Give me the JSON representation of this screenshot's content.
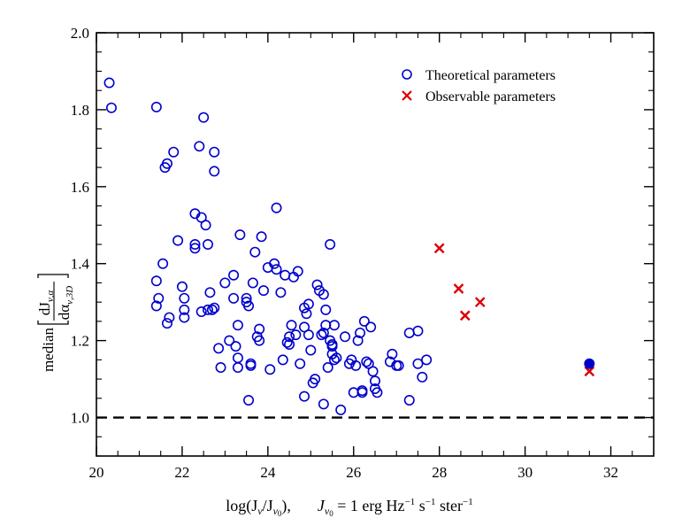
{
  "chart_data": {
    "type": "scatter",
    "title": "",
    "xlabel": "log(Jν / Jν₀),     Jν₀ = 1 erg Hz⁻¹ s⁻¹ ster⁻¹",
    "xlabel_parts": {
      "left": "log(J",
      "left_sub": "ν",
      "mid": "/J",
      "mid_sub": "ν",
      "mid_sub2": "0",
      "close": "),",
      "right": "J",
      "right_sub": "ν",
      "right_sub2": "0",
      "eq": " = 1 erg Hz",
      "exp1": "−1",
      "s": " s",
      "exp2": "−1",
      "ster": " ster",
      "exp3": "−1"
    },
    "ylabel": "median[ dJν,α / dαν,3D ]",
    "ylabel_parts": {
      "prefix": "median",
      "num": "dJ",
      "num_sub": "ν,α",
      "den": "dα",
      "den_sub": "ν,3D"
    },
    "xlim": [
      20,
      33
    ],
    "ylim": [
      0.9,
      2.0
    ],
    "xticks": [
      20,
      22,
      24,
      26,
      28,
      30,
      32
    ],
    "yticks": [
      1.0,
      1.2,
      1.4,
      1.6,
      1.8,
      2.0
    ],
    "xtick_labels": [
      "20",
      "22",
      "24",
      "26",
      "28",
      "30",
      "32"
    ],
    "ytick_labels": [
      "1.0",
      "1.2",
      "1.4",
      "1.6",
      "1.8",
      "2.0"
    ],
    "reference_line": {
      "y": 1.0,
      "style": "dashed",
      "color": "#000000"
    },
    "legend": {
      "placement": "top-right",
      "entries": [
        {
          "label": "Theoretical parameters",
          "marker": "circle",
          "color": "#0000cc"
        },
        {
          "label": "Observable parameters",
          "marker": "x",
          "color": "#dd0000"
        }
      ]
    },
    "series": [
      {
        "name": "Theoretical parameters",
        "marker": "circle",
        "color": "#0000cc",
        "points": [
          [
            20.3,
            1.87
          ],
          [
            20.35,
            1.805
          ],
          [
            21.4,
            1.807
          ],
          [
            21.4,
            1.355
          ],
          [
            21.4,
            1.29
          ],
          [
            21.45,
            1.31
          ],
          [
            21.55,
            1.4
          ],
          [
            21.6,
            1.65
          ],
          [
            21.65,
            1.66
          ],
          [
            21.8,
            1.69
          ],
          [
            21.65,
            1.245
          ],
          [
            21.7,
            1.26
          ],
          [
            21.9,
            1.46
          ],
          [
            22.0,
            1.34
          ],
          [
            22.05,
            1.31
          ],
          [
            22.05,
            1.28
          ],
          [
            22.05,
            1.26
          ],
          [
            22.3,
            1.53
          ],
          [
            22.3,
            1.45
          ],
          [
            22.3,
            1.44
          ],
          [
            22.4,
            1.705
          ],
          [
            22.45,
            1.52
          ],
          [
            22.45,
            1.275
          ],
          [
            22.5,
            1.78
          ],
          [
            22.55,
            1.5
          ],
          [
            22.6,
            1.45
          ],
          [
            22.65,
            1.325
          ],
          [
            22.6,
            1.28
          ],
          [
            22.7,
            1.28
          ],
          [
            22.75,
            1.285
          ],
          [
            22.75,
            1.69
          ],
          [
            22.75,
            1.64
          ],
          [
            22.85,
            1.18
          ],
          [
            22.9,
            1.13
          ],
          [
            23.0,
            1.35
          ],
          [
            23.1,
            1.2
          ],
          [
            23.2,
            1.37
          ],
          [
            23.2,
            1.31
          ],
          [
            23.25,
            1.185
          ],
          [
            23.3,
            1.24
          ],
          [
            23.3,
            1.155
          ],
          [
            23.3,
            1.13
          ],
          [
            23.35,
            1.475
          ],
          [
            23.5,
            1.31
          ],
          [
            23.5,
            1.3
          ],
          [
            23.55,
            1.29
          ],
          [
            23.55,
            1.045
          ],
          [
            23.6,
            1.14
          ],
          [
            23.6,
            1.135
          ],
          [
            23.65,
            1.35
          ],
          [
            23.7,
            1.43
          ],
          [
            23.75,
            1.21
          ],
          [
            23.8,
            1.23
          ],
          [
            23.8,
            1.2
          ],
          [
            23.85,
            1.47
          ],
          [
            23.9,
            1.33
          ],
          [
            24.0,
            1.39
          ],
          [
            24.05,
            1.125
          ],
          [
            24.15,
            1.4
          ],
          [
            24.2,
            1.385
          ],
          [
            24.2,
            1.545
          ],
          [
            24.3,
            1.325
          ],
          [
            24.35,
            1.15
          ],
          [
            24.4,
            1.37
          ],
          [
            24.45,
            1.195
          ],
          [
            24.5,
            1.21
          ],
          [
            24.5,
            1.19
          ],
          [
            24.55,
            1.24
          ],
          [
            24.6,
            1.365
          ],
          [
            24.65,
            1.215
          ],
          [
            24.7,
            1.38
          ],
          [
            24.75,
            1.14
          ],
          [
            24.85,
            1.235
          ],
          [
            24.85,
            1.055
          ],
          [
            24.85,
            1.285
          ],
          [
            24.9,
            1.27
          ],
          [
            24.95,
            1.295
          ],
          [
            24.95,
            1.215
          ],
          [
            25.0,
            1.175
          ],
          [
            25.05,
            1.09
          ],
          [
            25.1,
            1.1
          ],
          [
            25.15,
            1.345
          ],
          [
            25.2,
            1.33
          ],
          [
            25.25,
            1.215
          ],
          [
            25.3,
            1.22
          ],
          [
            25.3,
            1.035
          ],
          [
            25.3,
            1.32
          ],
          [
            25.35,
            1.28
          ],
          [
            25.35,
            1.24
          ],
          [
            25.4,
            1.13
          ],
          [
            25.45,
            1.45
          ],
          [
            25.45,
            1.2
          ],
          [
            25.5,
            1.185
          ],
          [
            25.5,
            1.19
          ],
          [
            25.5,
            1.165
          ],
          [
            25.55,
            1.15
          ],
          [
            25.55,
            1.24
          ],
          [
            25.6,
            1.155
          ],
          [
            25.7,
            1.02
          ],
          [
            25.8,
            1.21
          ],
          [
            25.9,
            1.14
          ],
          [
            25.95,
            1.15
          ],
          [
            26.0,
            1.065
          ],
          [
            26.05,
            1.135
          ],
          [
            26.1,
            1.2
          ],
          [
            26.15,
            1.22
          ],
          [
            26.2,
            1.07
          ],
          [
            26.2,
            1.065
          ],
          [
            26.25,
            1.25
          ],
          [
            26.3,
            1.145
          ],
          [
            26.35,
            1.14
          ],
          [
            26.4,
            1.235
          ],
          [
            26.45,
            1.12
          ],
          [
            26.5,
            1.095
          ],
          [
            26.5,
            1.075
          ],
          [
            26.55,
            1.065
          ],
          [
            26.85,
            1.145
          ],
          [
            26.9,
            1.165
          ],
          [
            27.0,
            1.135
          ],
          [
            27.05,
            1.135
          ],
          [
            27.3,
            1.045
          ],
          [
            27.3,
            1.22
          ],
          [
            27.5,
            1.225
          ],
          [
            27.5,
            1.14
          ],
          [
            27.6,
            1.105
          ],
          [
            27.7,
            1.15
          ]
        ]
      },
      {
        "name": "Observable parameters",
        "marker": "x",
        "color": "#dd0000",
        "points": [
          [
            28.0,
            1.44
          ],
          [
            28.45,
            1.335
          ],
          [
            28.6,
            1.265
          ],
          [
            28.95,
            1.3
          ],
          [
            31.5,
            1.12
          ]
        ]
      },
      {
        "name": "Filled marker",
        "marker": "filled-circle",
        "color": "#0000cc",
        "points": [
          [
            31.5,
            1.14
          ]
        ]
      }
    ]
  }
}
